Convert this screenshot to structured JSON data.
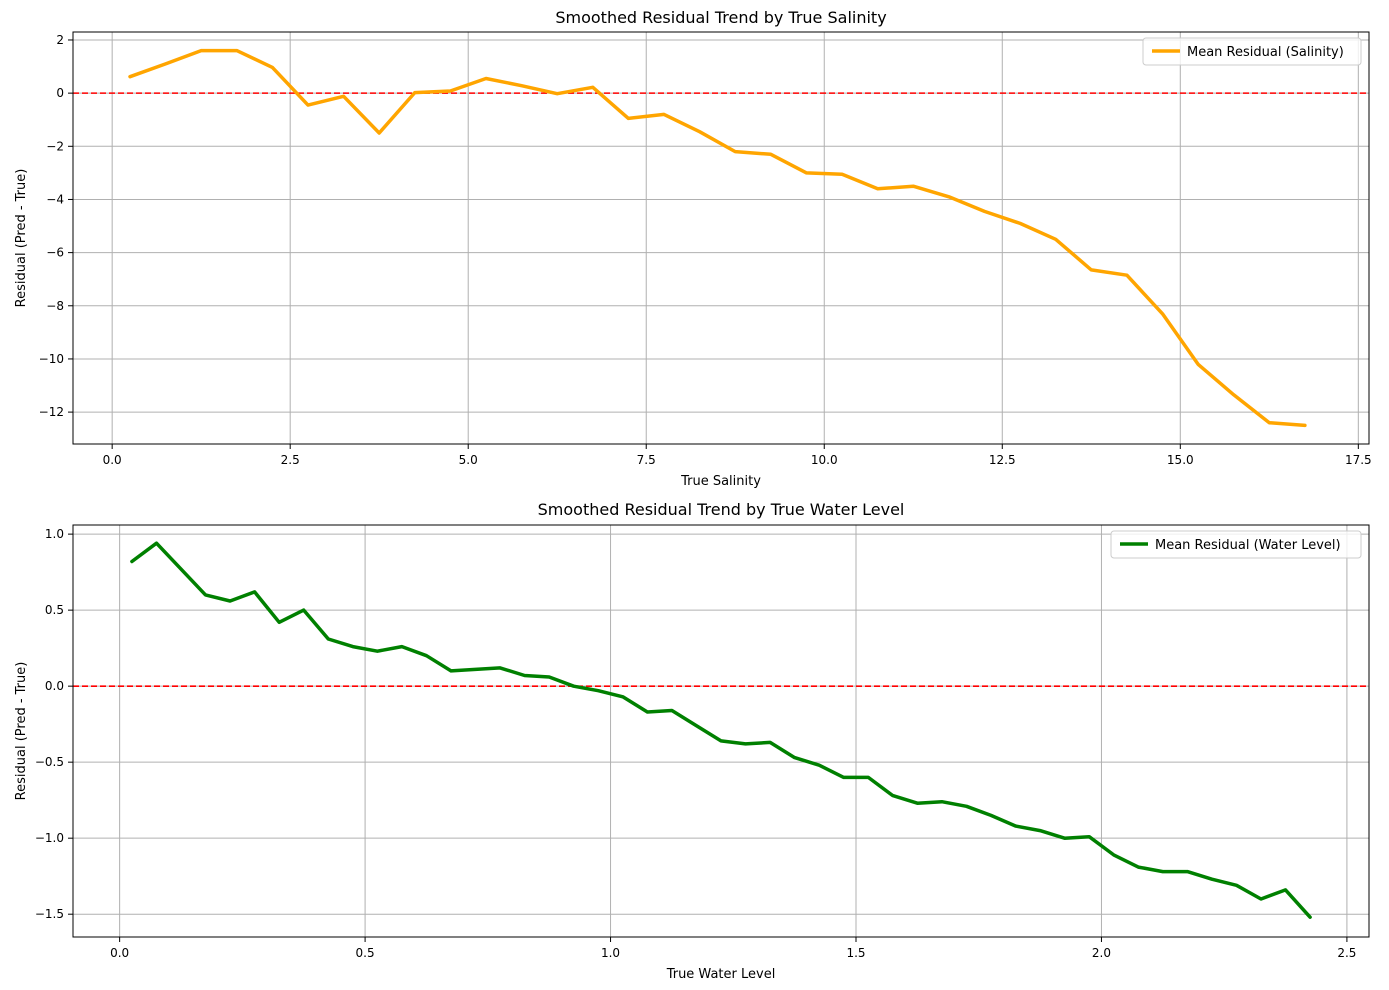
{
  "chart_data": [
    {
      "type": "line",
      "title": "Smoothed Residual Trend by True Salinity",
      "xlabel": "True Salinity",
      "ylabel": "Residual (Pred - True)",
      "xlim": [
        -0.55,
        17.65
      ],
      "ylim": [
        -13.2,
        2.3
      ],
      "xticks": [
        0,
        2.5,
        5,
        7.5,
        10,
        12.5,
        15,
        17.5
      ],
      "xtick_labels": [
        "0.0",
        "2.5",
        "5.0",
        "7.5",
        "10.0",
        "12.5",
        "15.0",
        "17.5"
      ],
      "yticks": [
        2,
        0,
        -2,
        -4,
        -6,
        -8,
        -10,
        -12
      ],
      "ytick_labels": [
        "2",
        "0",
        "−2",
        "−4",
        "−6",
        "−8",
        "−10",
        "−12"
      ],
      "grid": true,
      "legend_position": "top-right",
      "reference_line": {
        "y": 0,
        "color": "#ff0000",
        "style": "dashed"
      },
      "series": [
        {
          "name": "Mean Residual (Salinity)",
          "color": "#ffa500",
          "x": [
            0.25,
            0.75,
            1.25,
            1.75,
            2.25,
            2.75,
            3.25,
            3.75,
            4.25,
            4.75,
            5.25,
            5.75,
            6.25,
            6.75,
            7.25,
            7.75,
            8.25,
            8.75,
            9.25,
            9.75,
            10.25,
            10.75,
            11.25,
            11.75,
            12.25,
            12.75,
            13.25,
            13.75,
            14.25,
            14.75,
            15.25,
            15.75,
            16.25,
            16.75
          ],
          "y": [
            0.62,
            1.1,
            1.6,
            1.6,
            0.97,
            -0.45,
            -0.12,
            -1.5,
            0.02,
            0.08,
            0.55,
            0.28,
            -0.02,
            0.22,
            -0.95,
            -0.8,
            -1.45,
            -2.2,
            -2.3,
            -3.0,
            -3.05,
            -3.6,
            -3.5,
            -3.9,
            -4.45,
            -4.9,
            -5.5,
            -6.65,
            -6.85,
            -8.3,
            -10.2,
            -11.35,
            -12.4,
            -12.5
          ]
        }
      ]
    },
    {
      "type": "line",
      "title": "Smoothed Residual Trend by True Water Level",
      "xlabel": "True Water Level",
      "ylabel": "Residual (Pred - True)",
      "xlim": [
        -0.095,
        2.545
      ],
      "ylim": [
        -1.65,
        1.06
      ],
      "xticks": [
        0,
        0.5,
        1,
        1.5,
        2,
        2.5
      ],
      "xtick_labels": [
        "0.0",
        "0.5",
        "1.0",
        "1.5",
        "2.0",
        "2.5"
      ],
      "yticks": [
        1,
        0.5,
        0,
        -0.5,
        -1,
        -1.5
      ],
      "ytick_labels": [
        "1.0",
        "0.5",
        "0.0",
        "−0.5",
        "−1.0",
        "−1.5"
      ],
      "grid": true,
      "legend_position": "top-right",
      "reference_line": {
        "y": 0,
        "color": "#ff0000",
        "style": "dashed"
      },
      "series": [
        {
          "name": "Mean Residual (Water Level)",
          "color": "#008000",
          "x": [
            0.025,
            0.075,
            0.125,
            0.175,
            0.225,
            0.275,
            0.325,
            0.375,
            0.425,
            0.475,
            0.525,
            0.575,
            0.625,
            0.675,
            0.725,
            0.775,
            0.825,
            0.875,
            0.925,
            0.975,
            1.025,
            1.075,
            1.125,
            1.175,
            1.225,
            1.275,
            1.325,
            1.375,
            1.425,
            1.475,
            1.525,
            1.575,
            1.625,
            1.675,
            1.725,
            1.775,
            1.825,
            1.875,
            1.925,
            1.975,
            2.025,
            2.075,
            2.125,
            2.175,
            2.225,
            2.275,
            2.325,
            2.375,
            2.425
          ],
          "y": [
            0.82,
            0.94,
            0.77,
            0.6,
            0.56,
            0.62,
            0.42,
            0.5,
            0.31,
            0.26,
            0.23,
            0.26,
            0.2,
            0.1,
            0.11,
            0.12,
            0.07,
            0.06,
            0.0,
            -0.03,
            -0.07,
            -0.17,
            -0.16,
            -0.26,
            -0.36,
            -0.38,
            -0.37,
            -0.47,
            -0.52,
            -0.6,
            -0.6,
            -0.72,
            -0.77,
            -0.76,
            -0.79,
            -0.85,
            -0.92,
            -0.95,
            -1.0,
            -0.99,
            -1.11,
            -1.19,
            -1.22,
            -1.22,
            -1.27,
            -1.31,
            -1.4,
            -1.34,
            -1.52
          ]
        }
      ]
    }
  ]
}
